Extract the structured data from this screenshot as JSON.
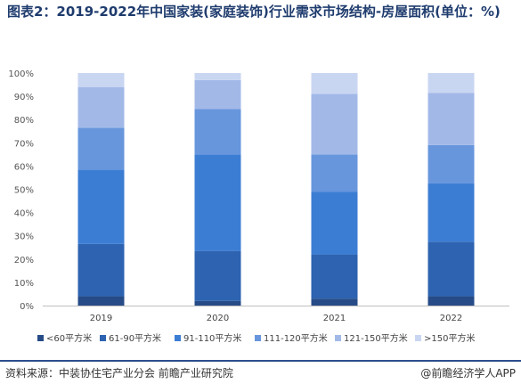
{
  "title": "图表2：2019-2022年中国家装(家庭装饰)行业需求市场结构-房屋面积(单位：%)",
  "source": "资料来源：中装协住宅产业分会 前瞻产业研究院",
  "credit": "@前瞻经济学人APP",
  "chart_data": {
    "type": "bar",
    "stacked": true,
    "categories": [
      "2019",
      "2020",
      "2021",
      "2022"
    ],
    "ylim": [
      0,
      100
    ],
    "yticks": [
      "0%",
      "10%",
      "20%",
      "30%",
      "40%",
      "50%",
      "60%",
      "70%",
      "80%",
      "90%",
      "100%"
    ],
    "grid": false,
    "legend_position": "bottom",
    "series": [
      {
        "name": "<60平方米",
        "values": [
          4,
          2,
          3,
          4
        ],
        "color": "#264b87"
      },
      {
        "name": "61-90平方米",
        "values": [
          22.5,
          21.5,
          19,
          23.5
        ],
        "color": "#2d63b0"
      },
      {
        "name": "91-110平方米",
        "values": [
          32,
          41.5,
          27,
          25
        ],
        "color": "#3c7dd4"
      },
      {
        "name": "111-120平方米",
        "values": [
          18,
          19.5,
          16,
          16.5
        ],
        "color": "#6796dd"
      },
      {
        "name": "121-150平方米",
        "values": [
          17.5,
          12.5,
          26,
          22.5
        ],
        "color": "#a2b9e8"
      },
      {
        "name": ">150平方米",
        "values": [
          6,
          3,
          9,
          8.5
        ],
        "color": "#c9d6f2"
      }
    ]
  }
}
